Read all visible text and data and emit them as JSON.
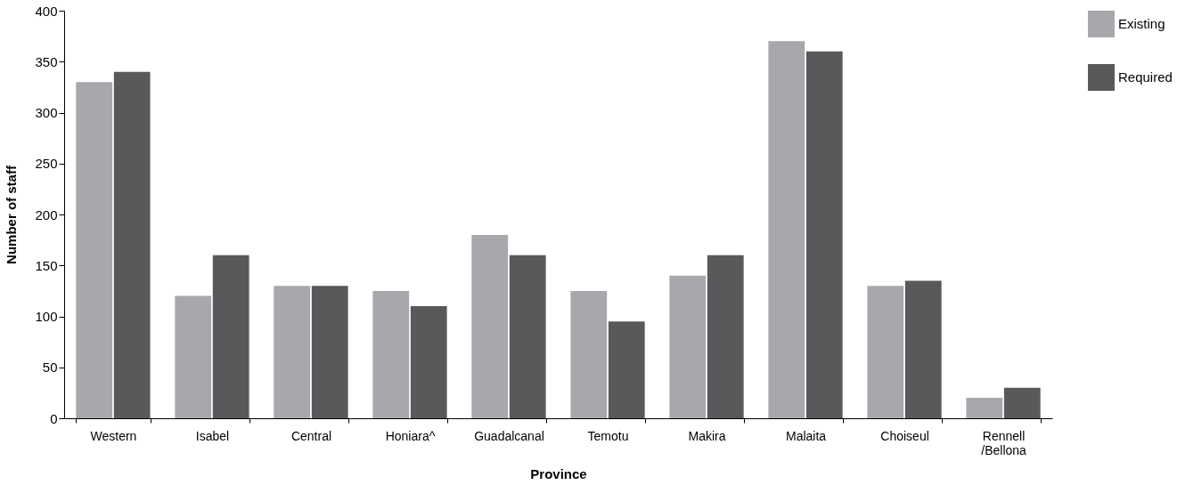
{
  "chart_data": {
    "type": "bar",
    "xlabel": "Province",
    "ylabel": "Number of staff",
    "categories": [
      "Western",
      "Isabel",
      "Central",
      "Honiara^",
      "Guadalcanal",
      "Temotu",
      "Makira",
      "Malaita",
      "Choiseul",
      "Rennell\n/Bellona"
    ],
    "series": [
      {
        "name": "Existing",
        "color": "#a7a8ac",
        "values": [
          330,
          120,
          130,
          125,
          180,
          125,
          140,
          370,
          130,
          20
        ]
      },
      {
        "name": "Required",
        "color": "#58595b",
        "values": [
          340,
          160,
          130,
          110,
          160,
          95,
          160,
          360,
          135,
          30
        ]
      }
    ],
    "ylim": [
      0,
      400
    ],
    "yticks": [
      0,
      50,
      100,
      150,
      200,
      250,
      300,
      350,
      400
    ],
    "grid": false,
    "legend": "right"
  }
}
